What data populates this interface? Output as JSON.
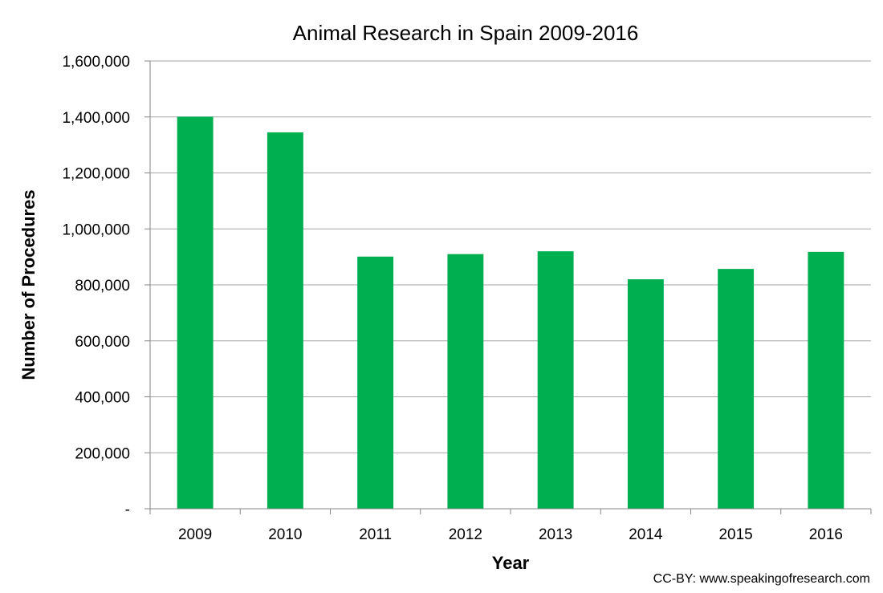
{
  "chart_data": {
    "type": "bar",
    "title": "Animal Research in Spain 2009-2016",
    "xlabel": "Year",
    "ylabel": "Number of Procedures",
    "categories": [
      "2009",
      "2010",
      "2011",
      "2012",
      "2013",
      "2014",
      "2015",
      "2016"
    ],
    "values": [
      1401000,
      1345000,
      901000,
      910000,
      920000,
      820000,
      857000,
      918000
    ],
    "ylim": [
      0,
      1600000
    ],
    "yticks": [
      0,
      200000,
      400000,
      600000,
      800000,
      1000000,
      1200000,
      1400000,
      1600000
    ],
    "ytick_labels": [
      "-",
      "200,000",
      "400,000",
      "600,000",
      "800,000",
      "1,000,000",
      "1,200,000",
      "1,400,000",
      "1,600,000"
    ],
    "grid": true,
    "bar_color": "#00b050",
    "grid_color": "#a6a6a6"
  },
  "credit": "CC-BY: www.speakingofresearch.com"
}
